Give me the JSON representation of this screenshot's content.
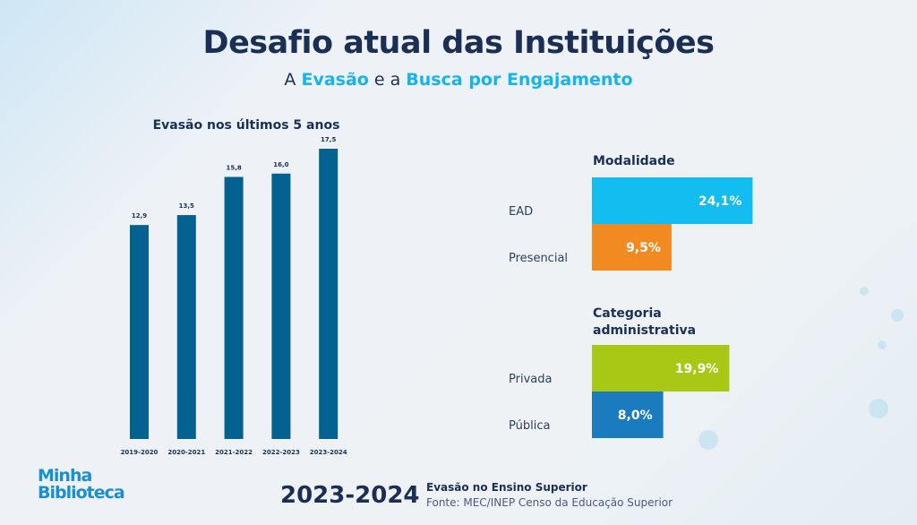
{
  "title": "Desafio atual das Instituições",
  "subtitle": {
    "pre": "A ",
    "w1": "Evasão",
    "mid": " e a ",
    "w2": "Busca por Engajamento"
  },
  "chart_data": [
    {
      "type": "bar",
      "title": "Evasão nos últimos 5 anos",
      "categories": [
        "2019-2020",
        "2020-2021",
        "2021-2022",
        "2022-2023",
        "2023-2024"
      ],
      "values": [
        12.9,
        13.5,
        15.8,
        16.0,
        17.5
      ],
      "labels": [
        "12,9",
        "13,5",
        "15,8",
        "16,0",
        "17,5"
      ],
      "color": "#03628f",
      "ylim": [
        0,
        17.5
      ],
      "grid": false
    },
    {
      "type": "bar",
      "orientation": "horizontal",
      "title": "Modalidade",
      "categories": [
        "EAD",
        "Presencial"
      ],
      "values": [
        24.1,
        9.5
      ],
      "labels": [
        "24,1%",
        "9,5%"
      ],
      "colors": [
        "#14bdf0",
        "#f28a22"
      ]
    },
    {
      "type": "bar",
      "orientation": "horizontal",
      "title": "Categoria administrativa",
      "categories": [
        "Privada",
        "Pública"
      ],
      "values": [
        19.9,
        8.0
      ],
      "labels": [
        "19,9%",
        "8,0%"
      ],
      "colors": [
        "#a9c815",
        "#1b7bbf"
      ]
    }
  ],
  "logo": "Minha Biblioteca",
  "footer": {
    "year": "2023-2024",
    "line1": "Evasão no Ensino Superior",
    "line2": "Fonte: MEC/INEP Censo da Educação Superior"
  }
}
